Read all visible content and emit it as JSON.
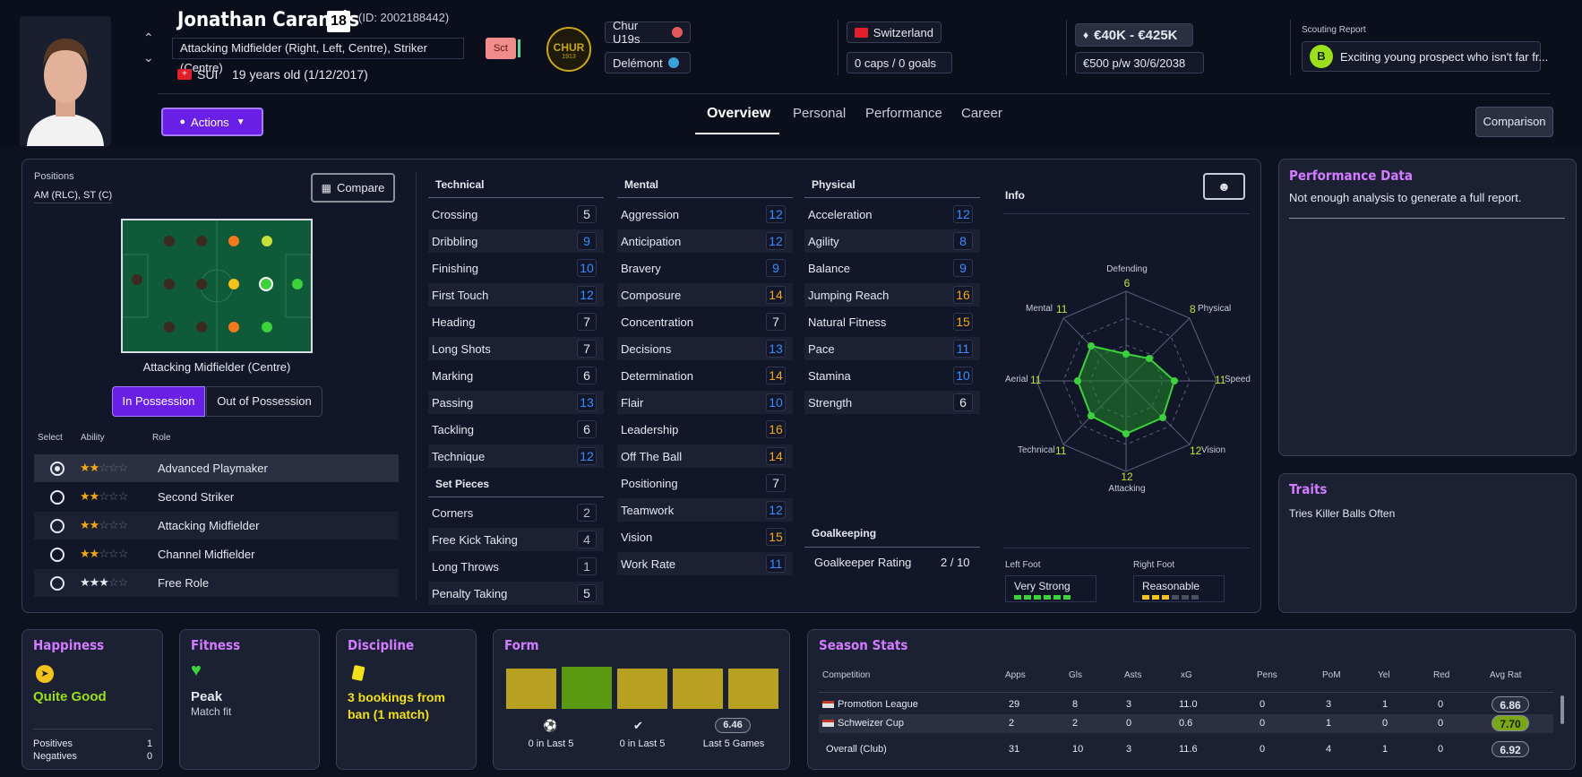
{
  "player": {
    "name": "Jonathan Caramés",
    "number": "18",
    "id": "(ID: 2002188442)",
    "positions_long": "Attacking Midfielder (Right, Left, Centre), Striker (Centre)",
    "nationality": "SUI",
    "age": "19 years old (1/12/2017)",
    "tag": "Sct"
  },
  "clubs": {
    "main": "Chur U19s",
    "loan": "Delémont",
    "badge_text": "CHUR",
    "badge_year": "1913"
  },
  "country": {
    "name": "Switzerland",
    "caps": "0 caps / 0 goals"
  },
  "value": {
    "range": "€40K - €425K",
    "wage": "€500 p/w 30/6/2038"
  },
  "scouting": {
    "title": "Scouting Report",
    "grade": "B",
    "text": "Exciting young prospect who isn't far fr..."
  },
  "actions_label": "Actions",
  "tabs": [
    "Overview",
    "Personal",
    "Performance",
    "Career"
  ],
  "comparison_label": "Comparison",
  "positions": {
    "title": "Positions",
    "value": "AM (RLC), ST (C)",
    "compare_label": "Compare",
    "selected_role": "Attacking Midfielder (Centre)",
    "in_possession": "In Possession",
    "out_possession": "Out of Possession"
  },
  "roles_header": {
    "select": "Select",
    "ability": "Ability",
    "role": "Role"
  },
  "roles": [
    {
      "name": "Advanced Playmaker",
      "stars": 2,
      "selected": true
    },
    {
      "name": "Second Striker",
      "stars": 2,
      "selected": false
    },
    {
      "name": "Attacking Midfielder",
      "stars": 2,
      "selected": false
    },
    {
      "name": "Channel Midfielder",
      "stars": 2,
      "selected": false
    },
    {
      "name": "Free Role",
      "stars": 3,
      "selected": false
    }
  ],
  "technical": {
    "title": "Technical",
    "items": [
      [
        "Crossing",
        "5"
      ],
      [
        "Dribbling",
        "9"
      ],
      [
        "Finishing",
        "10"
      ],
      [
        "First Touch",
        "12"
      ],
      [
        "Heading",
        "7"
      ],
      [
        "Long Shots",
        "7"
      ],
      [
        "Marking",
        "6"
      ],
      [
        "Passing",
        "13"
      ],
      [
        "Tackling",
        "6"
      ],
      [
        "Technique",
        "12"
      ]
    ]
  },
  "set_pieces": {
    "title": "Set Pieces",
    "items": [
      [
        "Corners",
        "2"
      ],
      [
        "Free Kick Taking",
        "4"
      ],
      [
        "Long Throws",
        "1"
      ],
      [
        "Penalty Taking",
        "5"
      ]
    ]
  },
  "mental": {
    "title": "Mental",
    "items": [
      [
        "Aggression",
        "12"
      ],
      [
        "Anticipation",
        "12"
      ],
      [
        "Bravery",
        "9"
      ],
      [
        "Composure",
        "14"
      ],
      [
        "Concentration",
        "7"
      ],
      [
        "Decisions",
        "13"
      ],
      [
        "Determination",
        "14"
      ],
      [
        "Flair",
        "10"
      ],
      [
        "Leadership",
        "16"
      ],
      [
        "Off The Ball",
        "14"
      ],
      [
        "Positioning",
        "7"
      ],
      [
        "Teamwork",
        "12"
      ],
      [
        "Vision",
        "15"
      ],
      [
        "Work Rate",
        "11"
      ]
    ]
  },
  "physical": {
    "title": "Physical",
    "items": [
      [
        "Acceleration",
        "12"
      ],
      [
        "Agility",
        "8"
      ],
      [
        "Balance",
        "9"
      ],
      [
        "Jumping Reach",
        "16"
      ],
      [
        "Natural Fitness",
        "15"
      ],
      [
        "Pace",
        "11"
      ],
      [
        "Stamina",
        "10"
      ],
      [
        "Strength",
        "6"
      ]
    ]
  },
  "goalkeeping": {
    "title": "Goalkeeping",
    "label": "Goalkeeper Rating",
    "value": "2 / 10"
  },
  "info": {
    "title": "Info",
    "radar": {
      "Defending": "6",
      "Physical": "8",
      "Speed": "11",
      "Vision": "12",
      "Attacking": "12",
      "Technical": "11",
      "Aerial": "11",
      "Mental": "11"
    },
    "left_foot_label": "Left Foot",
    "left_foot": "Very Strong",
    "right_foot_label": "Right Foot",
    "right_foot": "Reasonable"
  },
  "performance": {
    "title": "Performance Data",
    "text": "Not enough analysis to generate a full report."
  },
  "traits": {
    "title": "Traits",
    "text": "Tries Killer Balls Often"
  },
  "happiness": {
    "title": "Happiness",
    "value": "Quite Good",
    "positives_label": "Positives",
    "positives": "1",
    "negatives_label": "Negatives",
    "negatives": "0"
  },
  "fitness": {
    "title": "Fitness",
    "value": "Peak",
    "sub": "Match fit"
  },
  "discipline": {
    "title": "Discipline",
    "value": "3 bookings from ban (1 match)"
  },
  "form": {
    "title": "Form",
    "goals": "0 in Last 5",
    "assists": "0 in Last 5",
    "avg": "6.46",
    "avg_label": "Last 5 Games"
  },
  "season": {
    "title": "Season Stats",
    "headers": [
      "Competition",
      "Apps",
      "Gls",
      "Asts",
      "xG",
      "Pens",
      "PoM",
      "Yel",
      "Red",
      "Avg Rat"
    ],
    "rows": [
      [
        "Promotion League",
        "29",
        "8",
        "3",
        "11.0",
        "0",
        "3",
        "1",
        "0",
        "6.86"
      ],
      [
        "Schweizer Cup",
        "2",
        "2",
        "0",
        "0.6",
        "0",
        "1",
        "0",
        "0",
        "7.70"
      ],
      [
        "Overall (Club)",
        "31",
        "10",
        "3",
        "11.6",
        "0",
        "4",
        "1",
        "0",
        "6.92"
      ]
    ]
  },
  "colors": {
    "accent": "#7b2cff",
    "pitch": "#0f5a38",
    "green": "#3bd23b",
    "yellow": "#c9a61a",
    "purple_title": "#d27cff"
  }
}
